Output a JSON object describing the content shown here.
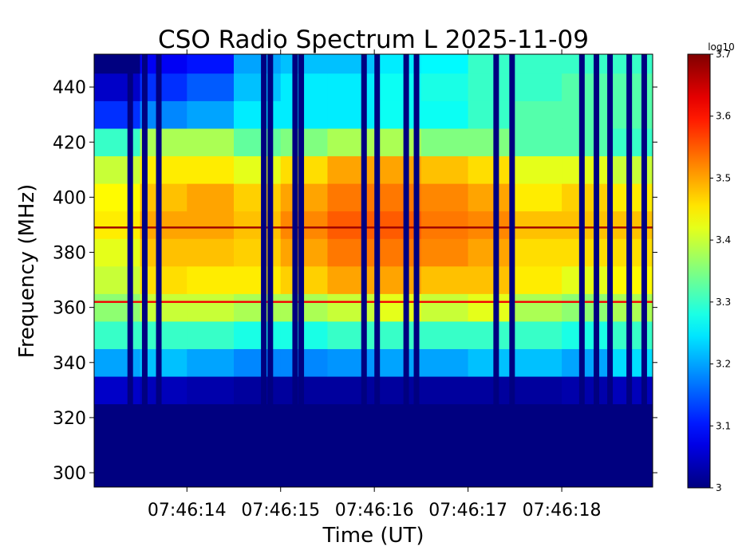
{
  "chart_data": {
    "type": "heatmap",
    "title": "CSO Radio Spectrum L 2025-11-09",
    "x_label": "Time (UT)",
    "y_label": "Frequency (MHz)",
    "colorbar_label": "log10",
    "colormap": "jet",
    "xlim": [
      13.01,
      18.97
    ],
    "xticks": [
      {
        "value": 14,
        "label": "07:46:14"
      },
      {
        "value": 15,
        "label": "07:46:15"
      },
      {
        "value": 16,
        "label": "07:46:16"
      },
      {
        "value": 17,
        "label": "07:46:17"
      },
      {
        "value": 18,
        "label": "07:46:18"
      }
    ],
    "ylim": [
      294.8,
      451.9
    ],
    "yticks": [
      300,
      320,
      340,
      360,
      380,
      400,
      420,
      440
    ],
    "clim": [
      3.0,
      3.7
    ],
    "cticks": [
      3.0,
      3.1,
      3.2,
      3.3,
      3.4,
      3.5,
      3.6,
      3.7
    ],
    "x": [
      13.25,
      13.75,
      14.25,
      14.75,
      15.25,
      15.75,
      16.25,
      16.75,
      17.25,
      17.75,
      18.25,
      18.75
    ],
    "y": [
      300,
      310,
      320,
      330,
      340,
      350,
      360,
      370,
      380,
      390,
      400,
      410,
      420,
      430,
      440,
      450
    ],
    "z": [
      [
        3.0,
        3.0,
        3.0,
        3.0,
        3.0,
        3.0,
        3.0,
        3.0,
        3.0,
        3.0,
        3.0,
        3.0
      ],
      [
        3.0,
        3.0,
        3.0,
        3.0,
        3.0,
        3.0,
        3.0,
        3.0,
        3.0,
        3.0,
        3.0,
        3.0
      ],
      [
        3.0,
        3.0,
        3.0,
        3.0,
        3.0,
        3.0,
        3.0,
        3.0,
        3.0,
        3.0,
        3.0,
        3.0
      ],
      [
        3.05,
        3.04,
        3.03,
        3.02,
        3.02,
        3.02,
        3.02,
        3.02,
        3.02,
        3.02,
        3.03,
        3.04
      ],
      [
        3.2,
        3.22,
        3.2,
        3.18,
        3.18,
        3.19,
        3.2,
        3.2,
        3.22,
        3.22,
        3.2,
        3.24
      ],
      [
        3.3,
        3.3,
        3.3,
        3.28,
        3.28,
        3.3,
        3.3,
        3.3,
        3.3,
        3.3,
        3.28,
        3.3
      ],
      [
        3.36,
        3.4,
        3.4,
        3.38,
        3.38,
        3.4,
        3.42,
        3.4,
        3.42,
        3.38,
        3.36,
        3.38
      ],
      [
        3.4,
        3.46,
        3.45,
        3.45,
        3.47,
        3.5,
        3.5,
        3.48,
        3.48,
        3.45,
        3.42,
        3.44
      ],
      [
        3.42,
        3.48,
        3.48,
        3.47,
        3.5,
        3.53,
        3.53,
        3.52,
        3.5,
        3.46,
        3.46,
        3.46
      ],
      [
        3.45,
        3.5,
        3.5,
        3.48,
        3.52,
        3.55,
        3.55,
        3.53,
        3.52,
        3.48,
        3.48,
        3.48
      ],
      [
        3.44,
        3.48,
        3.5,
        3.47,
        3.5,
        3.53,
        3.53,
        3.52,
        3.5,
        3.45,
        3.47,
        3.45
      ],
      [
        3.4,
        3.45,
        3.45,
        3.42,
        3.46,
        3.5,
        3.5,
        3.48,
        3.46,
        3.42,
        3.42,
        3.4
      ],
      [
        3.3,
        3.38,
        3.38,
        3.33,
        3.35,
        3.38,
        3.38,
        3.35,
        3.35,
        3.32,
        3.32,
        3.3
      ],
      [
        3.12,
        3.18,
        3.2,
        3.25,
        3.25,
        3.25,
        3.27,
        3.27,
        3.3,
        3.32,
        3.32,
        3.32
      ],
      [
        3.05,
        3.12,
        3.15,
        3.22,
        3.25,
        3.25,
        3.27,
        3.28,
        3.3,
        3.3,
        3.32,
        3.32
      ],
      [
        3.0,
        3.08,
        3.1,
        3.2,
        3.22,
        3.22,
        3.25,
        3.26,
        3.3,
        3.3,
        3.3,
        3.3
      ]
    ],
    "stripes_x": [
      13.395,
      13.55,
      13.7,
      14.82,
      14.89,
      15.155,
      15.22,
      15.89,
      16.03,
      16.34,
      16.45,
      17.3,
      17.47,
      18.215,
      18.37,
      18.515,
      18.72,
      18.88
    ],
    "stripes_z": [
      3.0,
      3.0,
      3.0,
      3.0,
      3.0,
      3.0,
      3.0,
      3.0,
      3.0,
      3.0,
      3.0,
      3.0,
      3.0,
      3.0,
      3.0,
      3.0,
      3.0,
      3.0
    ],
    "lines_y": [
      389,
      362
    ],
    "lines_z": [
      3.68,
      3.62
    ]
  }
}
